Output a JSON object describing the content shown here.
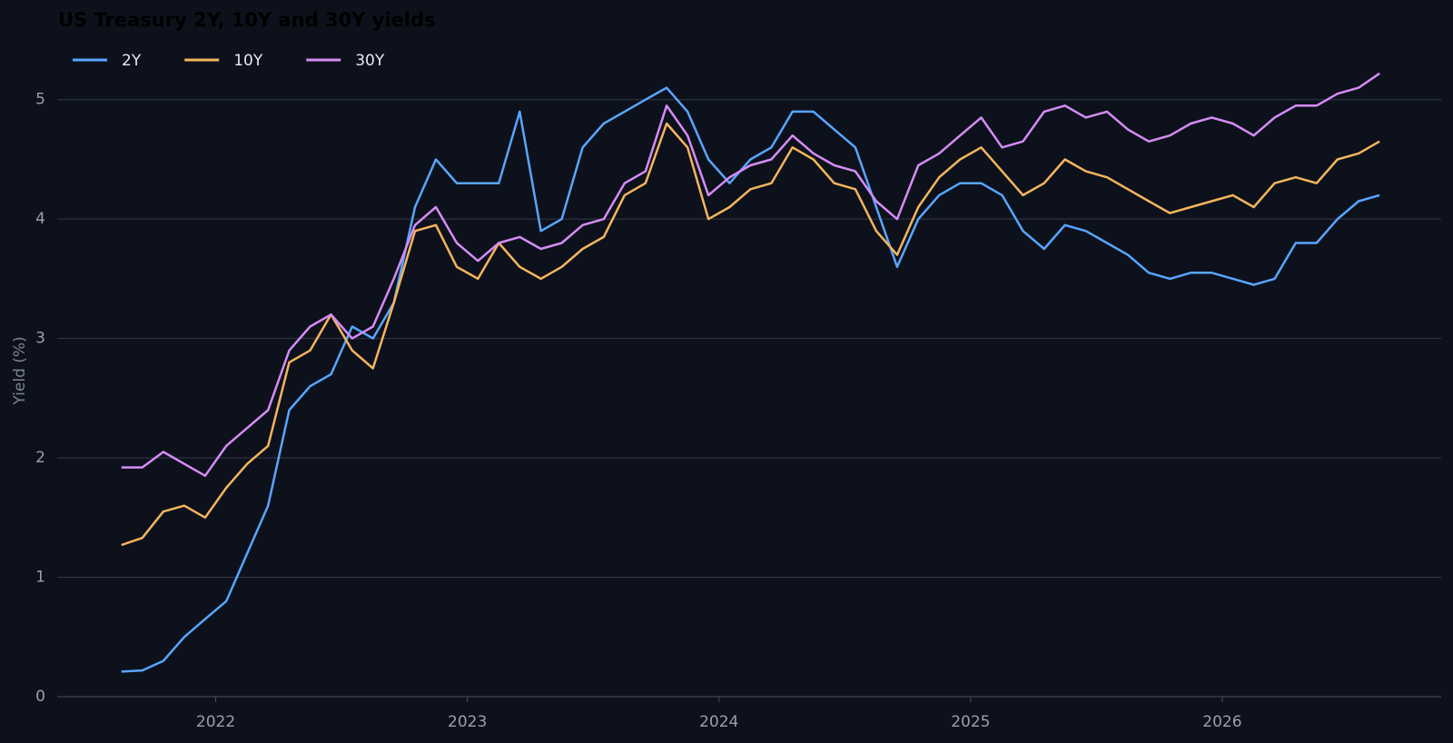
{
  "chart_data": {
    "type": "line",
    "title": "US Treasury 2Y, 10Y and 30Y yields",
    "y_label": "Yield (%)",
    "x": [
      2021.625,
      2021.708,
      2021.792,
      2021.875,
      2021.958,
      2022.042,
      2022.125,
      2022.208,
      2022.292,
      2022.375,
      2022.458,
      2022.542,
      2022.625,
      2022.708,
      2022.792,
      2022.875,
      2022.958,
      2023.042,
      2023.125,
      2023.208,
      2023.292,
      2023.375,
      2023.458,
      2023.542,
      2023.625,
      2023.708,
      2023.792,
      2023.875,
      2023.958,
      2024.042,
      2024.125,
      2024.208,
      2024.292,
      2024.375,
      2024.458,
      2024.542,
      2024.625,
      2024.708,
      2024.792,
      2024.875,
      2024.958,
      2025.042,
      2025.125,
      2025.208,
      2025.292,
      2025.375,
      2025.458,
      2025.542,
      2025.625,
      2025.708,
      2025.792,
      2025.875,
      2025.958,
      2026.042,
      2026.125,
      2026.208,
      2026.292,
      2026.375,
      2026.458,
      2026.542,
      2026.625
    ],
    "series": [
      {
        "name": "2Y",
        "color": "#58a6ff",
        "values": [
          0.21,
          0.22,
          0.3,
          0.5,
          0.65,
          0.8,
          1.2,
          1.6,
          2.4,
          2.6,
          2.7,
          3.1,
          3.0,
          3.3,
          4.1,
          4.5,
          4.3,
          4.3,
          4.3,
          4.9,
          3.9,
          4.0,
          4.6,
          4.8,
          4.9,
          5.0,
          5.1,
          4.9,
          4.5,
          4.3,
          4.5,
          4.6,
          4.9,
          4.9,
          4.75,
          4.6,
          4.1,
          3.6,
          4.0,
          4.2,
          4.3,
          4.3,
          4.2,
          3.9,
          3.75,
          3.95,
          3.9,
          3.8,
          3.7,
          3.55,
          3.5,
          3.55,
          3.55,
          3.5,
          3.45,
          3.5,
          3.8,
          3.8,
          4.0,
          4.15,
          4.2
        ]
      },
      {
        "name": "10Y",
        "color": "#f5b55c",
        "values": [
          1.27,
          1.33,
          1.55,
          1.6,
          1.5,
          1.75,
          1.95,
          2.1,
          2.8,
          2.9,
          3.2,
          2.9,
          2.75,
          3.3,
          3.9,
          3.95,
          3.6,
          3.5,
          3.8,
          3.6,
          3.5,
          3.6,
          3.75,
          3.85,
          4.2,
          4.3,
          4.8,
          4.6,
          4.0,
          4.1,
          4.25,
          4.3,
          4.6,
          4.5,
          4.3,
          4.25,
          3.9,
          3.7,
          4.1,
          4.35,
          4.5,
          4.6,
          4.4,
          4.2,
          4.3,
          4.5,
          4.4,
          4.35,
          4.25,
          4.15,
          4.05,
          4.1,
          4.15,
          4.2,
          4.1,
          4.3,
          4.35,
          4.3,
          4.5,
          4.55,
          4.65
        ]
      },
      {
        "name": "30Y",
        "color": "#d58cf5",
        "values": [
          1.92,
          1.92,
          2.05,
          1.95,
          1.85,
          2.1,
          2.25,
          2.4,
          2.9,
          3.1,
          3.2,
          3.0,
          3.1,
          3.5,
          3.95,
          4.1,
          3.8,
          3.65,
          3.8,
          3.85,
          3.75,
          3.8,
          3.95,
          4.0,
          4.3,
          4.4,
          4.95,
          4.7,
          4.2,
          4.35,
          4.45,
          4.5,
          4.7,
          4.55,
          4.45,
          4.4,
          4.15,
          4.0,
          4.45,
          4.55,
          4.7,
          4.85,
          4.6,
          4.65,
          4.9,
          4.95,
          4.85,
          4.9,
          4.75,
          4.65,
          4.7,
          4.8,
          4.85,
          4.8,
          4.7,
          4.85,
          4.95,
          4.95,
          5.05,
          5.1,
          5.22
        ]
      }
    ],
    "xlim": [
      2021.37,
      2026.87
    ],
    "xticks": [
      2022,
      2023,
      2024,
      2025,
      2026
    ],
    "ylim": [
      0,
      5.5
    ],
    "yticks": [
      0,
      1,
      2,
      3,
      4,
      5
    ],
    "grid": true,
    "legend": "top-left"
  }
}
